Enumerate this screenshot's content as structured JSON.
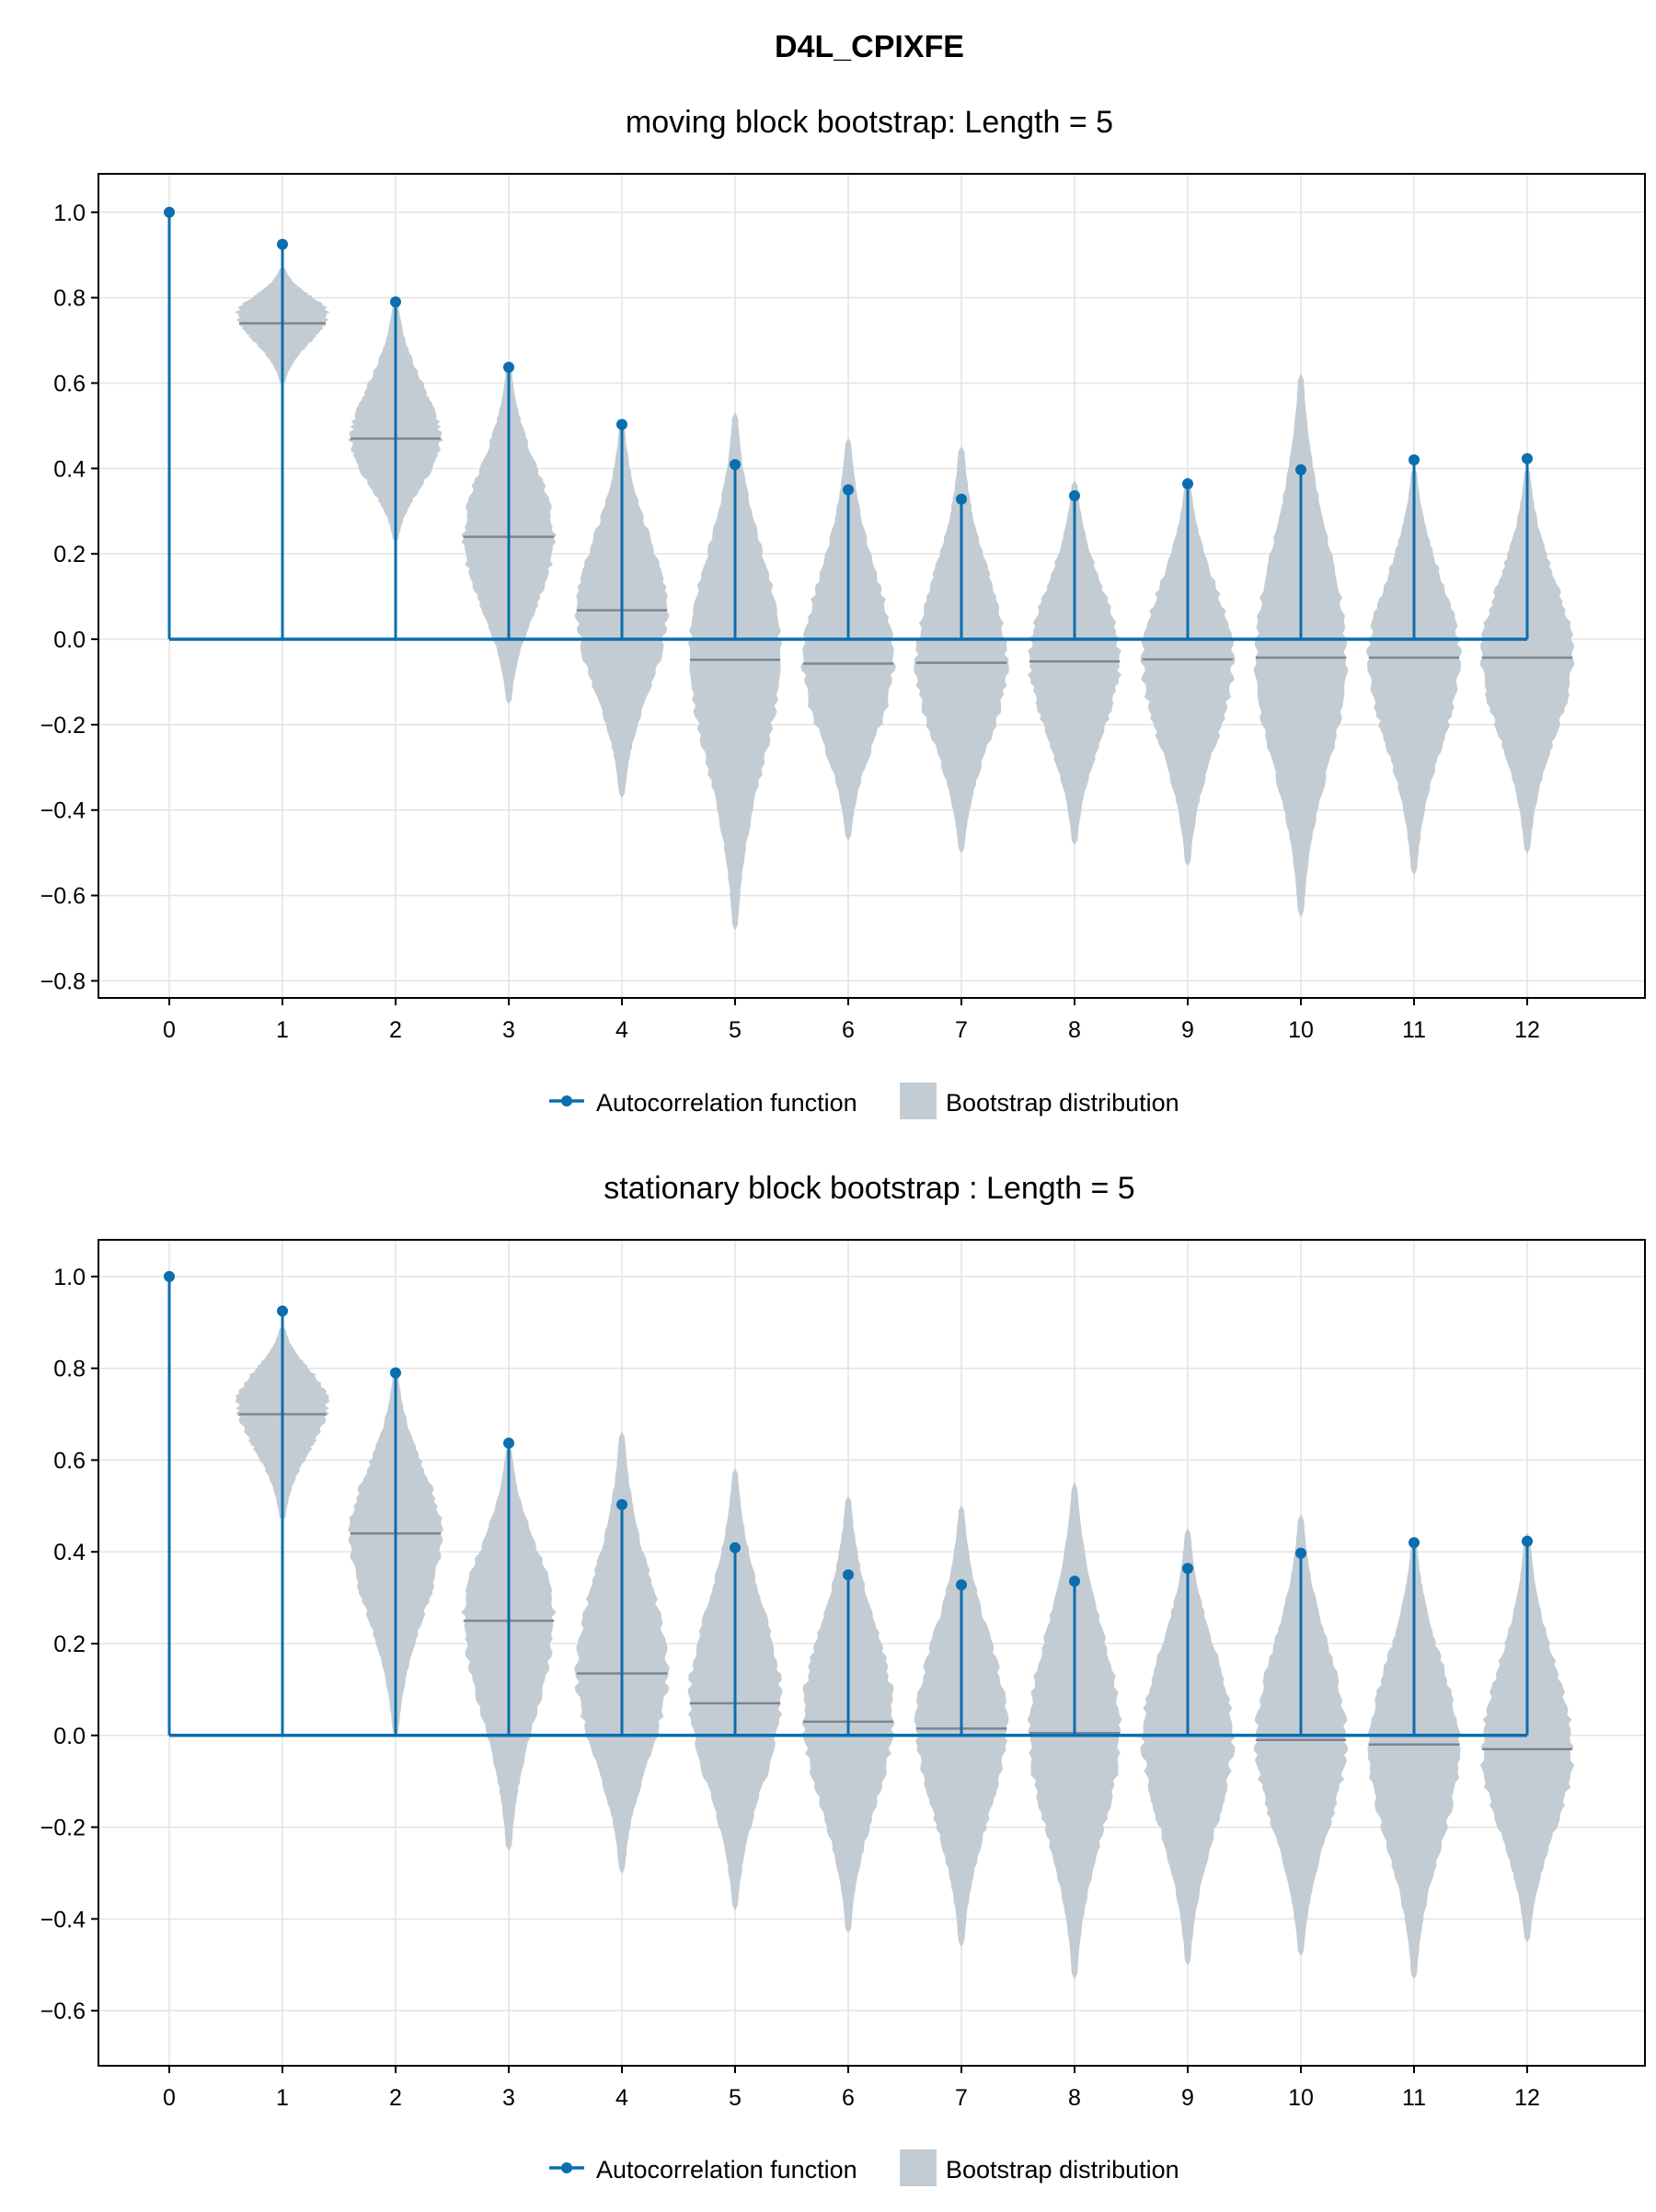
{
  "figure": {
    "title": "D4L_CPIXFE"
  },
  "legend": {
    "acf_label": "Autocorrelation function",
    "boot_label": "Bootstrap distribution"
  },
  "colors": {
    "acf": "#0a6eaf",
    "violin": "#c4ccd3",
    "median": "#7d8591",
    "grid": "#e3e3e3",
    "axis": "#000000"
  },
  "chart_data": [
    {
      "type": "violin",
      "title": "moving block bootstrap: Length = 5",
      "x": [
        0,
        1,
        2,
        3,
        4,
        5,
        6,
        7,
        8,
        9,
        10,
        11,
        12
      ],
      "ylim": [
        -0.84,
        1.09
      ],
      "yticks": [
        1.0,
        0.8,
        0.6,
        0.4,
        0.2,
        0.0,
        -0.2,
        -0.4,
        -0.6,
        -0.8
      ],
      "ytick_labels": [
        "1.0",
        "0.8",
        "0.6",
        "0.4",
        "0.2",
        "0.0",
        "−0.2",
        "−0.4",
        "−0.6",
        "−0.8"
      ],
      "grid": true,
      "legend_position": "bottom",
      "acf": [
        1.0,
        0.925,
        0.79,
        0.637,
        0.503,
        0.409,
        0.35,
        0.328,
        0.336,
        0.364,
        0.397,
        0.42,
        0.423
      ],
      "bootstrap": [
        null,
        {
          "median": 0.74,
          "min": 0.6,
          "max": 0.87,
          "mode": 0.76,
          "width": 0.8
        },
        {
          "median": 0.47,
          "min": 0.23,
          "max": 0.79,
          "mode": 0.46,
          "width": 0.8
        },
        {
          "median": 0.24,
          "min": -0.15,
          "max": 0.64,
          "mode": 0.24,
          "width": 0.8
        },
        {
          "median": 0.068,
          "min": -0.37,
          "max": 0.5,
          "mode": 0.06,
          "width": 0.8
        },
        {
          "median": -0.048,
          "min": -0.68,
          "max": 0.53,
          "mode": -0.03,
          "width": 0.8
        },
        {
          "median": -0.057,
          "min": -0.47,
          "max": 0.47,
          "mode": -0.06,
          "width": 0.8
        },
        {
          "median": -0.055,
          "min": -0.5,
          "max": 0.45,
          "mode": -0.06,
          "width": 0.8
        },
        {
          "median": -0.052,
          "min": -0.48,
          "max": 0.37,
          "mode": -0.05,
          "width": 0.8
        },
        {
          "median": -0.047,
          "min": -0.53,
          "max": 0.38,
          "mode": -0.05,
          "width": 0.8
        },
        {
          "median": -0.043,
          "min": -0.65,
          "max": 0.62,
          "mode": -0.05,
          "width": 0.8
        },
        {
          "median": -0.043,
          "min": -0.55,
          "max": 0.4,
          "mode": -0.04,
          "width": 0.8
        },
        {
          "median": -0.043,
          "min": -0.5,
          "max": 0.4,
          "mode": -0.04,
          "width": 0.8
        }
      ]
    },
    {
      "type": "violin",
      "title": "stationary block bootstrap : Length = 5",
      "x": [
        0,
        1,
        2,
        3,
        4,
        5,
        6,
        7,
        8,
        9,
        10,
        11,
        12
      ],
      "ylim": [
        -0.72,
        1.08
      ],
      "yticks": [
        1.0,
        0.8,
        0.6,
        0.4,
        0.2,
        0.0,
        -0.2,
        -0.4,
        -0.6
      ],
      "ytick_labels": [
        "1.0",
        "0.8",
        "0.6",
        "0.4",
        "0.2",
        "0.0",
        "−0.2",
        "−0.4",
        "−0.6"
      ],
      "grid": true,
      "legend_position": "bottom",
      "acf": [
        1.0,
        0.925,
        0.79,
        0.637,
        0.503,
        0.409,
        0.35,
        0.328,
        0.336,
        0.364,
        0.397,
        0.42,
        0.423
      ],
      "bootstrap": [
        null,
        {
          "median": 0.7,
          "min": 0.47,
          "max": 0.89,
          "mode": 0.73,
          "width": 0.8
        },
        {
          "median": 0.44,
          "min": 0.0,
          "max": 0.79,
          "mode": 0.44,
          "width": 0.8
        },
        {
          "median": 0.25,
          "min": -0.25,
          "max": 0.63,
          "mode": 0.26,
          "width": 0.8
        },
        {
          "median": 0.135,
          "min": -0.3,
          "max": 0.66,
          "mode": 0.13,
          "width": 0.8
        },
        {
          "median": 0.07,
          "min": -0.38,
          "max": 0.58,
          "mode": 0.08,
          "width": 0.8
        },
        {
          "median": 0.03,
          "min": -0.43,
          "max": 0.52,
          "mode": 0.04,
          "width": 0.8
        },
        {
          "median": 0.015,
          "min": -0.46,
          "max": 0.5,
          "mode": 0.02,
          "width": 0.8
        },
        {
          "median": 0.005,
          "min": -0.53,
          "max": 0.55,
          "mode": 0.01,
          "width": 0.8
        },
        {
          "median": 0.0,
          "min": -0.5,
          "max": 0.45,
          "mode": 0.0,
          "width": 0.8
        },
        {
          "median": -0.01,
          "min": -0.48,
          "max": 0.48,
          "mode": -0.01,
          "width": 0.8
        },
        {
          "median": -0.02,
          "min": -0.53,
          "max": 0.43,
          "mode": -0.03,
          "width": 0.8
        },
        {
          "median": -0.03,
          "min": -0.45,
          "max": 0.44,
          "mode": -0.04,
          "width": 0.8
        }
      ]
    }
  ]
}
